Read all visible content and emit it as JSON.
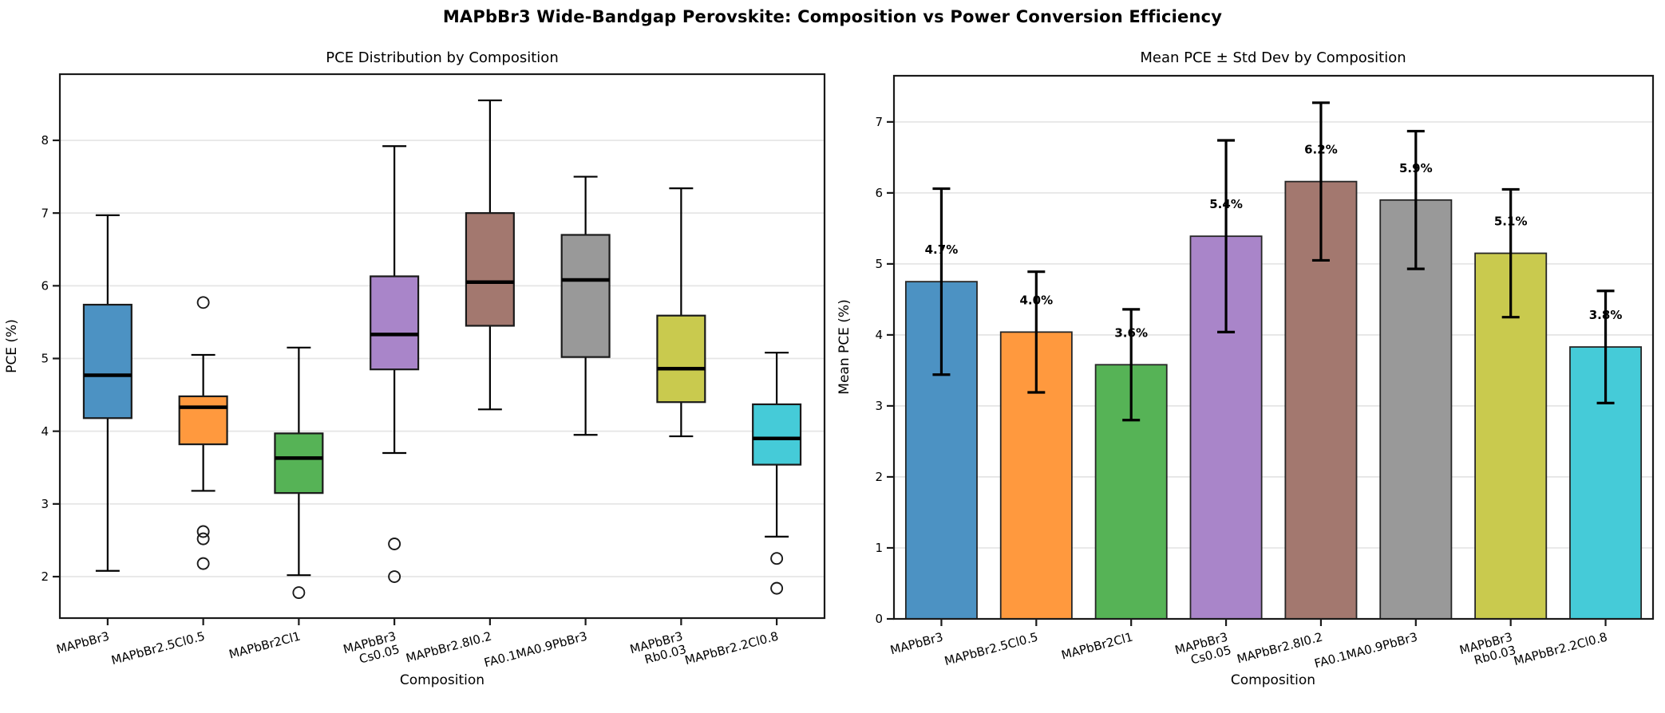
{
  "figure": {
    "suptitle": "MAPbBr3 Wide-Bandgap Perovskite: Composition vs Power Conversion Efficiency",
    "background": "#ffffff"
  },
  "style": {
    "grid_color": "#e6e6e6",
    "spine_color": "#1a1a1a",
    "box_edge_color": "#1a1a1a",
    "bar_edge_color": "#262626",
    "median_color": "#000000",
    "whisker_color": "#000000",
    "error_bar_color": "#000000",
    "text_color": "#000000",
    "background": "#ffffff"
  },
  "chart_data": [
    {
      "type": "box",
      "title": "PCE Distribution by Composition",
      "xlabel": "Composition",
      "ylabel": "PCE (%)",
      "ylim": [
        1.43,
        8.91
      ],
      "yticks": [
        2,
        3,
        4,
        5,
        6,
        7,
        8
      ],
      "grid": "horizontal-y",
      "legend": "none",
      "categories": [
        [
          "MAPbBr3"
        ],
        [
          "MAPbBr2.5Cl0.5"
        ],
        [
          "MAPbBr2Cl1"
        ],
        [
          "MAPbBr3",
          "Cs0.05"
        ],
        [
          "MAPbBr2.8I0.2"
        ],
        [
          "FA0.1MA0.9PbBr3"
        ],
        [
          "MAPbBr3",
          "Rb0.03"
        ],
        [
          "MAPbBr2.2Cl0.8"
        ]
      ],
      "series": [
        {
          "name": "MAPbBr3",
          "fill": "#4c92c3",
          "whisker_low": 2.08,
          "q1": 4.18,
          "median": 4.77,
          "q3": 5.74,
          "whisker_high": 6.97,
          "outliers": []
        },
        {
          "name": "MAPbBr2.5Cl0.5",
          "fill": "#ff993e",
          "whisker_low": 3.18,
          "q1": 3.82,
          "median": 4.33,
          "q3": 4.48,
          "whisker_high": 5.05,
          "outliers": [
            5.77,
            2.62,
            2.52,
            2.18
          ]
        },
        {
          "name": "MAPbBr2Cl1",
          "fill": "#56b356",
          "whisker_low": 2.02,
          "q1": 3.15,
          "median": 3.63,
          "q3": 3.97,
          "whisker_high": 5.15,
          "outliers": [
            1.78
          ]
        },
        {
          "name": "MAPbBr3 Cs0.05",
          "fill": "#a985c9",
          "whisker_low": 3.7,
          "q1": 4.85,
          "median": 5.33,
          "q3": 6.13,
          "whisker_high": 7.92,
          "outliers": [
            2.45,
            2.0
          ]
        },
        {
          "name": "MAPbBr2.8I0.2",
          "fill": "#a3786f",
          "whisker_low": 4.3,
          "q1": 5.45,
          "median": 6.05,
          "q3": 7.0,
          "whisker_high": 8.55,
          "outliers": []
        },
        {
          "name": "FA0.1MA0.9PbBr3",
          "fill": "#999999",
          "whisker_low": 3.95,
          "q1": 5.02,
          "median": 6.08,
          "q3": 6.7,
          "whisker_high": 7.5,
          "outliers": []
        },
        {
          "name": "MAPbBr3 Rb0.03",
          "fill": "#c9ca4e",
          "whisker_low": 3.93,
          "q1": 4.4,
          "median": 4.86,
          "q3": 5.59,
          "whisker_high": 7.34,
          "outliers": []
        },
        {
          "name": "MAPbBr2.2Cl0.8",
          "fill": "#45cbd8",
          "whisker_low": 2.55,
          "q1": 3.54,
          "median": 3.9,
          "q3": 4.37,
          "whisker_high": 5.08,
          "outliers": [
            2.25,
            1.84
          ]
        }
      ]
    },
    {
      "type": "bar",
      "title": "Mean PCE ± Std Dev by Composition",
      "xlabel": "Composition",
      "ylabel": "Mean PCE (%)",
      "ylim": [
        0,
        7.65
      ],
      "yticks": [
        0,
        1,
        2,
        3,
        4,
        5,
        6,
        7
      ],
      "grid": "horizontal-y",
      "legend": "none",
      "categories": [
        [
          "MAPbBr3"
        ],
        [
          "MAPbBr2.5Cl0.5"
        ],
        [
          "MAPbBr2Cl1"
        ],
        [
          "MAPbBr3",
          "Cs0.05"
        ],
        [
          "MAPbBr2.8I0.2"
        ],
        [
          "FA0.1MA0.9PbBr3"
        ],
        [
          "MAPbBr3",
          "Rb0.03"
        ],
        [
          "MAPbBr2.2Cl0.8"
        ]
      ],
      "series": [
        {
          "name": "MAPbBr3",
          "fill": "#4c92c3",
          "mean": 4.75,
          "std": 1.31,
          "label": "4.7%"
        },
        {
          "name": "MAPbBr2.5Cl0.5",
          "fill": "#ff993e",
          "mean": 4.04,
          "std": 0.85,
          "label": "4.0%"
        },
        {
          "name": "MAPbBr2Cl1",
          "fill": "#56b356",
          "mean": 3.58,
          "std": 0.78,
          "label": "3.6%"
        },
        {
          "name": "MAPbBr3 Cs0.05",
          "fill": "#a985c9",
          "mean": 5.39,
          "std": 1.35,
          "label": "5.4%"
        },
        {
          "name": "MAPbBr2.8I0.2",
          "fill": "#a3786f",
          "mean": 6.16,
          "std": 1.11,
          "label": "6.2%"
        },
        {
          "name": "FA0.1MA0.9PbBr3",
          "fill": "#999999",
          "mean": 5.9,
          "std": 0.97,
          "label": "5.9%"
        },
        {
          "name": "MAPbBr3 Rb0.03",
          "fill": "#c9ca4e",
          "mean": 5.15,
          "std": 0.9,
          "label": "5.1%"
        },
        {
          "name": "MAPbBr2.2Cl0.8",
          "fill": "#45cbd8",
          "mean": 3.83,
          "std": 0.79,
          "label": "3.8%"
        }
      ]
    }
  ]
}
